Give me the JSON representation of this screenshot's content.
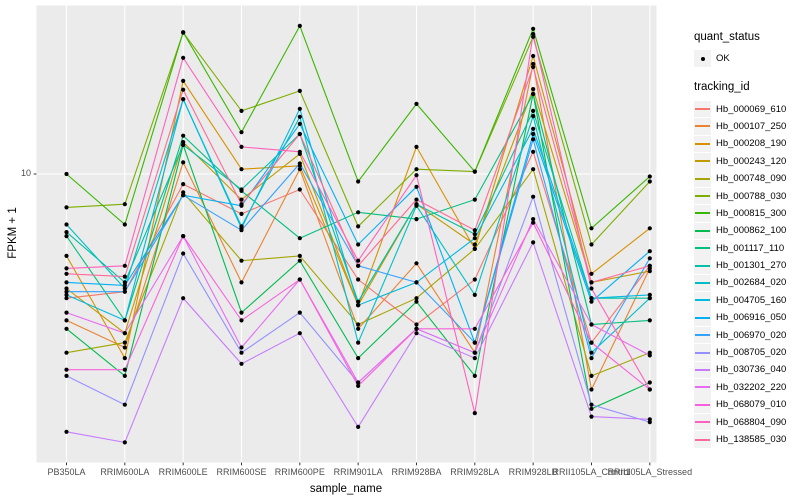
{
  "axes": {
    "y": {
      "title": "FPKM + 1",
      "tick_label": "10"
    },
    "x": {
      "title": "sample_name"
    }
  },
  "legend": {
    "quant_status": {
      "title": "quant_status",
      "items": [
        {
          "label": "OK",
          "marker": "black-point"
        }
      ]
    },
    "tracking": {
      "title": "tracking_id"
    }
  },
  "colors": {
    "panel_bg": "#EBEBEB",
    "gridline": "#FFFFFF",
    "point": "#000000",
    "axis_text": "#4D4D4D",
    "title_text": "#000000",
    "legend_key_bg": "#F2F2F2"
  },
  "chart_data": {
    "type": "line",
    "title": "",
    "xlabel": "sample_name",
    "ylabel": "FPKM + 1",
    "y_scale": "log10",
    "y_tick_values": [
      10
    ],
    "y_range_approx": [
      1.05,
      35
    ],
    "grid": "white gridlines on gray panel",
    "legend_position": "right",
    "point_marker": "small black dot (quant_status OK)",
    "categories": [
      "PB350LA",
      "RRIM600LA",
      "RRIM600LE",
      "RRIM600SE",
      "RRIM600PE",
      "RRIM901LA",
      "RRIM928BA",
      "RRIM928LA",
      "RRIM928LB",
      "RRII105LA_Control",
      "RRII105LA_Stressed"
    ],
    "series": [
      {
        "name": "Hb_000069_610",
        "color": "#F8766D",
        "values": [
          3.6,
          3.8,
          9.2,
          7.2,
          8.8,
          4.2,
          2.9,
          4.2,
          12.0,
          2.5,
          4.7
        ]
      },
      {
        "name": "Hb_000107_250",
        "color": "#EA8331",
        "values": [
          3.0,
          2.4,
          11.0,
          4.1,
          10.4,
          2.8,
          4.8,
          2.3,
          24.7,
          1.7,
          4.6
        ]
      },
      {
        "name": "Hb_000208_190",
        "color": "#D89000",
        "values": [
          5.1,
          2.2,
          21.5,
          10.4,
          10.7,
          3.4,
          12.5,
          5.4,
          26.4,
          4.4,
          6.4
        ]
      },
      {
        "name": "Hb_000243_120",
        "color": "#C09B00",
        "values": [
          3.9,
          2.7,
          13.0,
          8.1,
          11.8,
          3.4,
          7.8,
          5.6,
          20.1,
          4.1,
          4.5
        ]
      },
      {
        "name": "Hb_000748_090",
        "color": "#A3A500",
        "values": [
          2.3,
          2.5,
          8.6,
          4.9,
          5.1,
          2.9,
          3.6,
          5.4,
          10.4,
          1.9,
          2.3
        ]
      },
      {
        "name": "Hb_000788_030",
        "color": "#7CAE00",
        "values": [
          7.6,
          7.8,
          32.0,
          16.8,
          19.8,
          6.5,
          10.4,
          10.2,
          30.9,
          5.6,
          9.4
        ]
      },
      {
        "name": "Hb_000815_300",
        "color": "#39B600",
        "values": [
          10.0,
          6.6,
          32.1,
          14.1,
          33.8,
          9.4,
          17.8,
          10.2,
          33.0,
          6.4,
          9.8
        ]
      },
      {
        "name": "Hb_000862_100",
        "color": "#00BB4E",
        "values": [
          2.8,
          1.9,
          12.7,
          3.2,
          4.9,
          2.2,
          3.5,
          1.9,
          19.3,
          1.45,
          1.8
        ]
      },
      {
        "name": "Hb_001117_110",
        "color": "#00BF7D",
        "values": [
          6.0,
          3.0,
          13.7,
          8.7,
          5.9,
          7.3,
          6.9,
          8.1,
          19.3,
          2.9,
          3.0
        ]
      },
      {
        "name": "Hb_001301_270",
        "color": "#00C1A3",
        "values": [
          6.2,
          4.1,
          12.7,
          8.8,
          13.9,
          3.5,
          7.8,
          6.1,
          16.8,
          3.6,
          3.6
        ]
      },
      {
        "name": "Hb_002684_020",
        "color": "#00BFC4",
        "values": [
          6.6,
          3.9,
          18.5,
          6.5,
          16.0,
          2.5,
          7.7,
          3.7,
          16.1,
          2.3,
          3.6
        ]
      },
      {
        "name": "Hb_004705_160",
        "color": "#00BAE0",
        "values": [
          3.7,
          3.0,
          18.5,
          6.4,
          17.1,
          3.4,
          4.1,
          5.9,
          14.5,
          3.6,
          3.7
        ]
      },
      {
        "name": "Hb_006916_050",
        "color": "#00B0F6",
        "values": [
          4.1,
          4.0,
          8.4,
          7.7,
          15.1,
          5.6,
          9.0,
          2.5,
          13.9,
          3.5,
          5.3
        ]
      },
      {
        "name": "Hb_006970_020",
        "color": "#35A2FF",
        "values": [
          3.8,
          3.8,
          8.4,
          6.3,
          10.9,
          4.7,
          4.1,
          2.5,
          13.3,
          2.2,
          5.0
        ]
      },
      {
        "name": "Hb_008705_020",
        "color": "#9590FF",
        "values": [
          1.9,
          1.5,
          5.2,
          2.3,
          3.2,
          1.8,
          2.8,
          2.3,
          8.3,
          1.5,
          1.3
        ]
      },
      {
        "name": "Hb_030736_040",
        "color": "#C77CFF",
        "values": [
          1.2,
          1.1,
          3.6,
          2.1,
          2.7,
          1.25,
          2.7,
          2.2,
          5.7,
          1.36,
          1.33
        ]
      },
      {
        "name": "Hb_032202_220",
        "color": "#E76BF3",
        "values": [
          3.2,
          2.7,
          6.0,
          2.4,
          4.2,
          1.8,
          2.8,
          2.3,
          6.9,
          2.9,
          2.25
        ]
      },
      {
        "name": "Hb_068079_010",
        "color": "#FA62DB",
        "values": [
          2.0,
          2.0,
          6.0,
          3.0,
          4.2,
          1.75,
          2.8,
          2.8,
          6.7,
          2.5,
          1.7
        ]
      },
      {
        "name": "Hb_068804_090",
        "color": "#FF62BC",
        "values": [
          4.6,
          4.7,
          26.0,
          12.5,
          12.0,
          4.9,
          9.9,
          1.4,
          31.6,
          3.9,
          1.7
        ]
      },
      {
        "name": "Hb_138585_030",
        "color": "#FF6A98",
        "values": [
          4.4,
          4.3,
          20.0,
          7.8,
          13.9,
          4.7,
          8.1,
          6.3,
          24.1,
          4.1,
          4.7
        ]
      }
    ]
  }
}
